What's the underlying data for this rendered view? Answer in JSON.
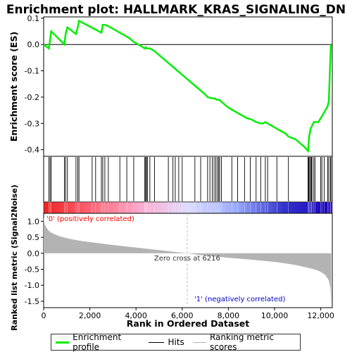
{
  "title": "Enrichment plot: HALLMARK_KRAS_SIGNALING_DN",
  "colors": {
    "es_line": "#00ee00",
    "hits": "#000000",
    "metric_fill": "#b3b3b3",
    "positive_text": "#ff0000",
    "negative_text": "#0000cc",
    "zero_cross_line": "#bbbbbb"
  },
  "chart_data": [
    {
      "name": "enrichment-profile",
      "type": "line",
      "ylabel": "Enrichment score (ES)",
      "xlim": [
        0,
        12500
      ],
      "ylim": [
        -0.425,
        0.105
      ],
      "yticks": [
        0.1,
        0.0,
        -0.1,
        -0.2,
        -0.3,
        -0.4
      ],
      "ytick_labels": [
        "0.1",
        "0.0",
        "-0.1",
        "-0.2",
        "-0.3",
        "-0.4"
      ],
      "grid": false,
      "series": [
        {
          "x": [
            0,
            230,
            280,
            330,
            900,
            950,
            1030,
            1400,
            1480,
            1530,
            2500,
            2560,
            2650,
            2800,
            3000,
            3300,
            3500,
            3700,
            3900,
            4100,
            4380,
            4420,
            4450,
            4600,
            4800,
            5000,
            5200,
            5400,
            5600,
            5800,
            6000,
            6200,
            6400,
            6600,
            6800,
            7000,
            7100,
            7300,
            7400,
            7500,
            7600,
            7800,
            8000,
            8200,
            8400,
            8600,
            8800,
            9000,
            9200,
            9400,
            9500,
            9600,
            9700,
            9900,
            10000,
            10100,
            10300,
            10500,
            10600,
            10900,
            11100,
            11300,
            11450,
            11500,
            11520,
            11560,
            11620,
            11700,
            11900,
            12000,
            12100,
            12200,
            12300,
            12350,
            12440
          ],
          "y": [
            0.0,
            -0.015,
            0.02,
            0.05,
            0.0,
            0.04,
            0.065,
            0.04,
            0.065,
            0.09,
            0.045,
            0.075,
            0.075,
            0.07,
            0.06,
            0.045,
            0.035,
            0.025,
            0.01,
            0.0,
            -0.015,
            -0.01,
            -0.015,
            -0.015,
            -0.025,
            -0.04,
            -0.055,
            -0.07,
            -0.085,
            -0.1,
            -0.115,
            -0.13,
            -0.145,
            -0.16,
            -0.175,
            -0.19,
            -0.2,
            -0.205,
            -0.205,
            -0.21,
            -0.21,
            -0.225,
            -0.24,
            -0.25,
            -0.26,
            -0.27,
            -0.28,
            -0.285,
            -0.295,
            -0.3,
            -0.3,
            -0.295,
            -0.3,
            -0.31,
            -0.315,
            -0.32,
            -0.33,
            -0.34,
            -0.35,
            -0.36,
            -0.375,
            -0.39,
            -0.405,
            -0.345,
            -0.34,
            -0.32,
            -0.31,
            -0.295,
            -0.295,
            -0.28,
            -0.265,
            -0.25,
            -0.235,
            -0.215,
            0.0
          ]
        }
      ]
    },
    {
      "name": "hits",
      "type": "scatter",
      "xlim": [
        0,
        12500
      ],
      "x": [
        230,
        280,
        330,
        900,
        950,
        1030,
        1400,
        1480,
        1530,
        2100,
        2250,
        2500,
        2560,
        2650,
        2800,
        3300,
        3600,
        3900,
        4380,
        4420,
        4450,
        4500,
        4600,
        4800,
        5400,
        5600,
        5700,
        5850,
        6000,
        6550,
        6800,
        7100,
        7200,
        7300,
        7380,
        7450,
        7520,
        7580,
        7620,
        7700,
        8150,
        8400,
        8700,
        8950,
        9200,
        9400,
        9600,
        9700,
        10100,
        10600,
        11450,
        11480,
        11520,
        11560,
        11600,
        11620,
        11700,
        11750,
        12000,
        12050,
        12150,
        12300,
        12350,
        12420,
        12440
      ]
    },
    {
      "name": "gene-ranking-colorbar",
      "type": "heatmap",
      "xlim": [
        0,
        12500
      ],
      "color_stops": [
        "#ee2222",
        "#ff6677",
        "#ffaacc",
        "#ddddff",
        "#99aaff",
        "#3333cc",
        "#1a00bb"
      ]
    },
    {
      "name": "ranked-list-metric",
      "type": "area",
      "xlabel": "Rank in Ordered Dataset",
      "ylabel": "Ranked list metric (Signal2Noise)",
      "xlim": [
        0,
        12500
      ],
      "ylim": [
        -1.7,
        1.25
      ],
      "yticks": [
        1.0,
        0.5,
        0.0,
        -0.5,
        -1.0,
        -1.5
      ],
      "ytick_labels": [
        "1.0",
        "0.5",
        "0.0",
        "-0.5",
        "-1.0",
        "-1.5"
      ],
      "xticks": [
        0,
        2000,
        4000,
        6000,
        8000,
        10000,
        12000
      ],
      "xtick_labels": [
        "0",
        "2,000",
        "4,000",
        "6,000",
        "8,000",
        "10,000",
        "12,000"
      ],
      "grid": false,
      "series": [
        {
          "x": [
            0,
            20,
            60,
            120,
            200,
            300,
            450,
            700,
            1000,
            1500,
            2000,
            3000,
            4000,
            5000,
            5500,
            6000,
            6216,
            6500,
            7000,
            8000,
            9000,
            10000,
            10500,
            11000,
            11500,
            11800,
            12000,
            12200,
            12350,
            12420,
            12450
          ],
          "y": [
            1.15,
            1.0,
            0.88,
            0.8,
            0.72,
            0.66,
            0.6,
            0.53,
            0.47,
            0.4,
            0.35,
            0.26,
            0.18,
            0.1,
            0.06,
            0.02,
            0.0,
            -0.03,
            -0.07,
            -0.14,
            -0.2,
            -0.27,
            -0.32,
            -0.38,
            -0.46,
            -0.52,
            -0.58,
            -0.68,
            -0.85,
            -1.1,
            -1.62
          ]
        }
      ],
      "annotations": {
        "positive": "'0' (positively correlated)",
        "negative": "'1' (negatively correlated)",
        "zero_cross": "Zero cross at 6216",
        "zero_cross_x": 6216
      }
    }
  ],
  "legend": {
    "placement": "bottom",
    "items": [
      {
        "label": "Enrichment profile",
        "color": "#00ee00",
        "style": "solid"
      },
      {
        "label": "Hits",
        "color": "#000000",
        "style": "solid"
      },
      {
        "label": "Ranking metric scores",
        "color": "#b3b3b3",
        "style": "solid"
      }
    ]
  }
}
